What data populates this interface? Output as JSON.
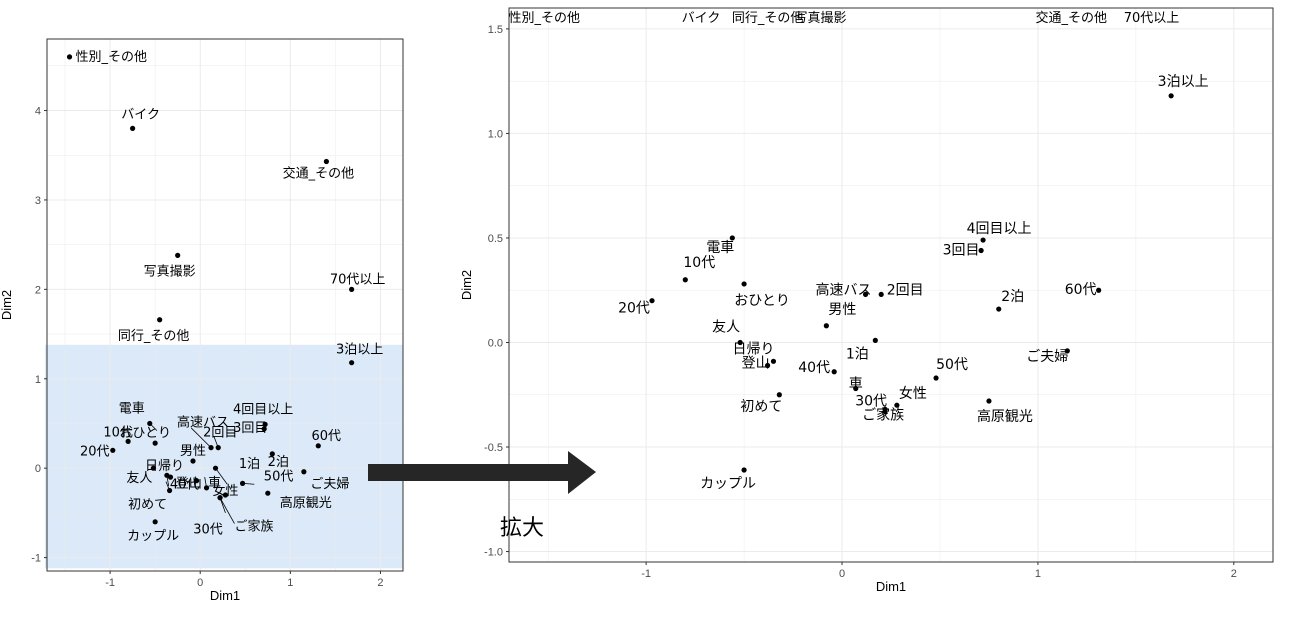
{
  "annotation": {
    "zoom_label": "拡大",
    "highlight_color": "#dbe9f8",
    "arrow_color": "#262626"
  },
  "chart_data": [
    {
      "type": "scatter",
      "panel": "full-view",
      "title": "",
      "xlabel": "Dim1",
      "ylabel": "Dim2",
      "xlim": [
        -1.7,
        2.25
      ],
      "ylim": [
        -1.15,
        4.8
      ],
      "xticks": [
        -1,
        0,
        1,
        2
      ],
      "yticks": [
        -1,
        0,
        1,
        2,
        3,
        4
      ],
      "grid": true,
      "zoom_region": {
        "x": [
          -1.7,
          2.25
        ],
        "y": [
          -1.12,
          1.38
        ]
      },
      "points": [
        {
          "label": "性別_その他",
          "x": -1.45,
          "y": 4.6
        },
        {
          "label": "バイク",
          "x": -0.75,
          "y": 3.8
        },
        {
          "label": "交通_その他",
          "x": 1.4,
          "y": 3.43
        },
        {
          "label": "写真撮影",
          "x": -0.25,
          "y": 2.38
        },
        {
          "label": "70代以上",
          "x": 1.68,
          "y": 2.0
        },
        {
          "label": "同行_その他",
          "x": -0.45,
          "y": 1.66
        },
        {
          "label": "3泊以上",
          "x": 1.68,
          "y": 1.18
        },
        {
          "label": "4回目以上",
          "x": 0.72,
          "y": 0.49
        },
        {
          "label": "3回目",
          "x": 0.71,
          "y": 0.44
        },
        {
          "label": "電車",
          "x": -0.56,
          "y": 0.5
        },
        {
          "label": "高速バス",
          "x": 0.12,
          "y": 0.23
        },
        {
          "label": "2回目",
          "x": 0.2,
          "y": 0.23
        },
        {
          "label": "10代",
          "x": -0.8,
          "y": 0.3
        },
        {
          "label": "おひとり",
          "x": -0.5,
          "y": 0.28
        },
        {
          "label": "60代",
          "x": 1.31,
          "y": 0.25
        },
        {
          "label": "2泊",
          "x": 0.8,
          "y": 0.16
        },
        {
          "label": "20代",
          "x": -0.97,
          "y": 0.2
        },
        {
          "label": "男性",
          "x": -0.08,
          "y": 0.08
        },
        {
          "label": "日帰り",
          "x": -0.33,
          "y": -0.1
        },
        {
          "label": "友人",
          "x": -0.52,
          "y": 0.0
        },
        {
          "label": "40代",
          "x": -0.04,
          "y": -0.14
        },
        {
          "label": "車",
          "x": 0.07,
          "y": -0.22
        },
        {
          "label": "1泊",
          "x": 0.17,
          "y": 0.0
        },
        {
          "label": "50代",
          "x": 0.47,
          "y": -0.17
        },
        {
          "label": "ご夫婦",
          "x": 1.15,
          "y": -0.04
        },
        {
          "label": "初めて",
          "x": -0.34,
          "y": -0.25
        },
        {
          "label": "登山",
          "x": -0.37,
          "y": -0.08
        },
        {
          "label": "女性",
          "x": 0.28,
          "y": -0.3
        },
        {
          "label": "高原観光",
          "x": 0.75,
          "y": -0.28
        },
        {
          "label": "30代",
          "x": 0.22,
          "y": -0.33
        },
        {
          "label": "ご家族",
          "x": 0.22,
          "y": -0.33
        },
        {
          "label": "カップル",
          "x": -0.5,
          "y": -0.6
        }
      ]
    },
    {
      "type": "scatter",
      "panel": "zoomed-view",
      "title": "",
      "xlabel": "Dim1",
      "ylabel": "Dim2",
      "xlim": [
        -1.7,
        2.2
      ],
      "ylim": [
        -1.05,
        1.6
      ],
      "xticks": [
        -1,
        0,
        1,
        2
      ],
      "yticks": [
        -1.0,
        -0.5,
        0.0,
        0.5,
        1.0,
        1.5
      ],
      "ytick_labels": [
        "-1.0",
        "-0.5",
        "0.0",
        "0.5",
        "1.0",
        "1.5"
      ],
      "grid": true,
      "top_labels": [
        "性別_その他",
        "バイク",
        "同行_その他",
        "写真撮影",
        "交通_その他",
        "70代以上"
      ],
      "points": [
        {
          "label": "3泊以上",
          "x": 1.68,
          "y": 1.18
        },
        {
          "label": "4回目以上",
          "x": 0.72,
          "y": 0.49
        },
        {
          "label": "3回目",
          "x": 0.71,
          "y": 0.44
        },
        {
          "label": "電車",
          "x": -0.56,
          "y": 0.5
        },
        {
          "label": "10代",
          "x": -0.8,
          "y": 0.3
        },
        {
          "label": "おひとり",
          "x": -0.5,
          "y": 0.28
        },
        {
          "label": "高速バス",
          "x": 0.12,
          "y": 0.23
        },
        {
          "label": "2回目",
          "x": 0.2,
          "y": 0.23
        },
        {
          "label": "2泊",
          "x": 0.8,
          "y": 0.16
        },
        {
          "label": "60代",
          "x": 1.31,
          "y": 0.25
        },
        {
          "label": "20代",
          "x": -0.97,
          "y": 0.2
        },
        {
          "label": "男性",
          "x": -0.08,
          "y": 0.08
        },
        {
          "label": "友人",
          "x": -0.52,
          "y": 0.0
        },
        {
          "label": "1泊",
          "x": 0.17,
          "y": 0.01
        },
        {
          "label": "日帰り",
          "x": -0.35,
          "y": -0.09
        },
        {
          "label": "40代",
          "x": -0.04,
          "y": -0.14
        },
        {
          "label": "ご夫婦",
          "x": 1.15,
          "y": -0.04
        },
        {
          "label": "50代",
          "x": 0.48,
          "y": -0.17
        },
        {
          "label": "車",
          "x": 0.07,
          "y": -0.22
        },
        {
          "label": "登山",
          "x": -0.38,
          "y": -0.11
        },
        {
          "label": "女性",
          "x": 0.28,
          "y": -0.3
        },
        {
          "label": "30代",
          "x": 0.22,
          "y": -0.32
        },
        {
          "label": "ご家族",
          "x": 0.22,
          "y": -0.33
        },
        {
          "label": "初めて",
          "x": -0.32,
          "y": -0.25
        },
        {
          "label": "高原観光",
          "x": 0.75,
          "y": -0.28
        },
        {
          "label": "カップル",
          "x": -0.5,
          "y": -0.61
        }
      ]
    }
  ]
}
